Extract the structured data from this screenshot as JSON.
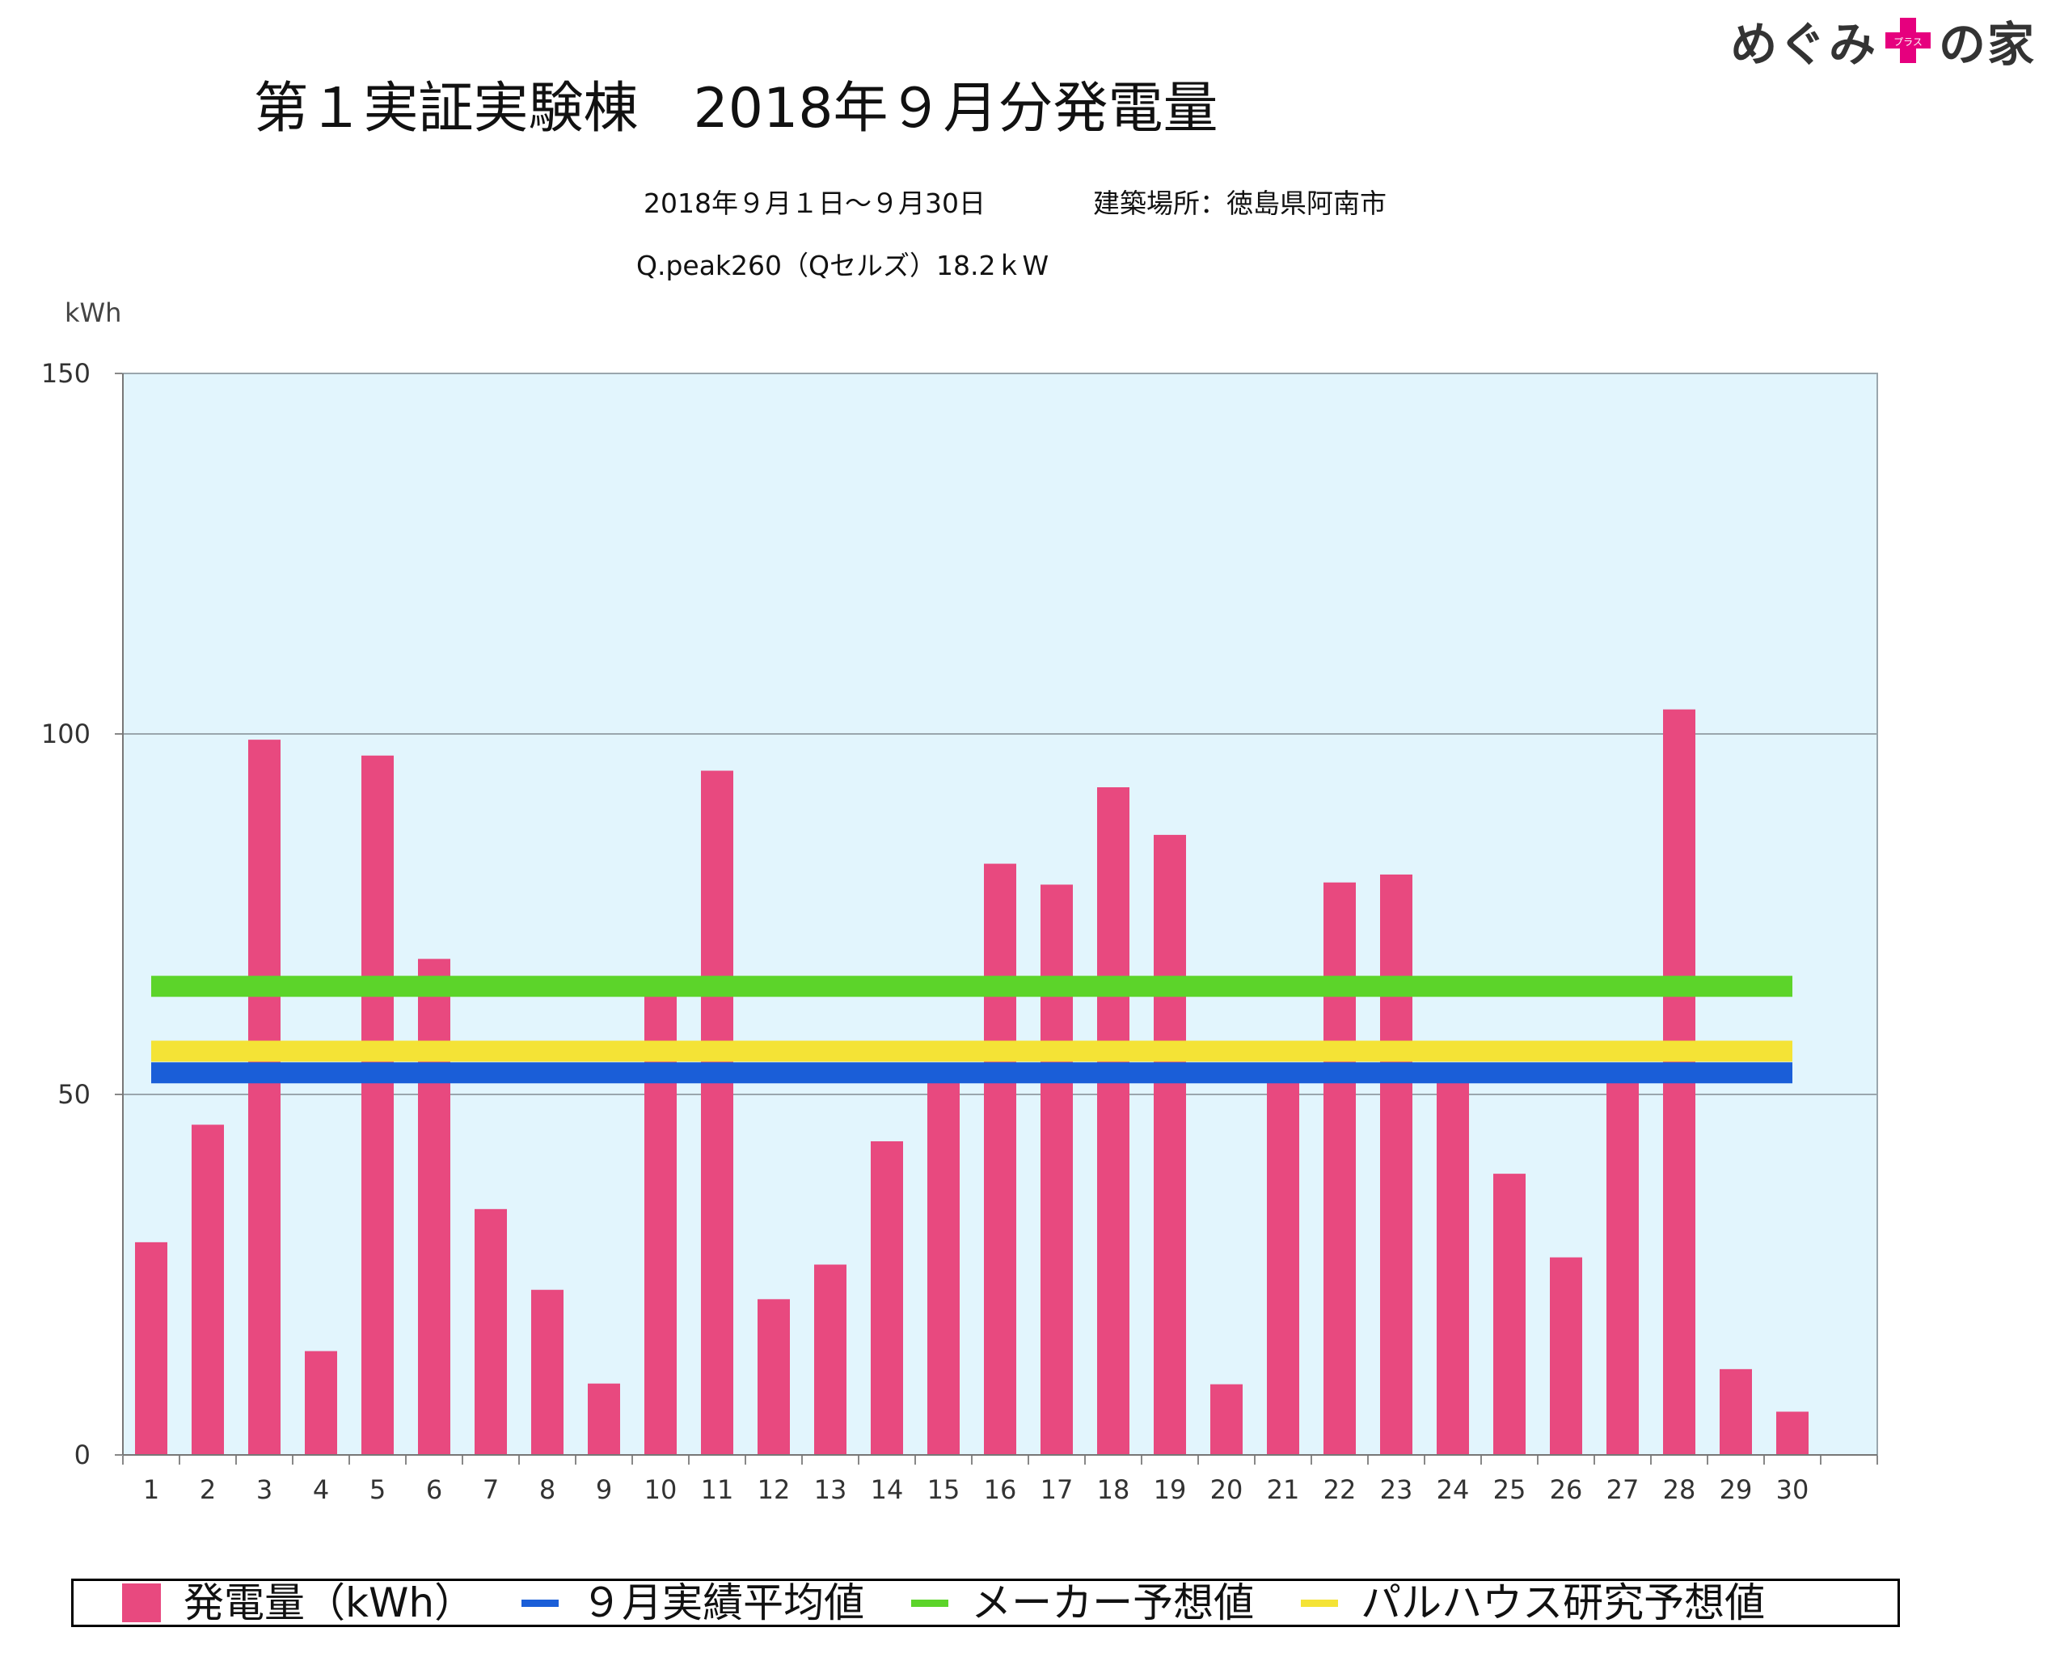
{
  "logo": {
    "left": "めぐみ",
    "right": "の家",
    "plus_text": "プラス",
    "plus_color": "#e6007e"
  },
  "title": "第１実証実験棟　2018年９月分発電量",
  "subtitle_period": "2018年９月１日～９月30日",
  "subtitle_location": "建築場所：徳島県阿南市",
  "subtitle_panel": "Q.peak260（Qセルズ）18.2ｋW",
  "chart_data": {
    "type": "bar",
    "ylabel": "kWh",
    "ylim": [
      0,
      150
    ],
    "yticks": [
      0,
      50,
      100,
      150
    ],
    "grid": true,
    "background": "#e2f5fd",
    "categories": [
      "1",
      "2",
      "3",
      "4",
      "5",
      "6",
      "7",
      "8",
      "9",
      "10",
      "11",
      "12",
      "13",
      "14",
      "15",
      "16",
      "17",
      "18",
      "19",
      "20",
      "21",
      "22",
      "23",
      "24",
      "25",
      "26",
      "27",
      "28",
      "29",
      "30"
    ],
    "series": [
      {
        "name": "発電量（kWh）",
        "color": "#e8497f",
        "values": [
          29.5,
          45.8,
          99.2,
          14.4,
          97.0,
          68.8,
          34.1,
          22.9,
          9.9,
          64.0,
          94.9,
          21.6,
          26.4,
          43.5,
          53.5,
          82.0,
          79.1,
          92.6,
          86.0,
          9.8,
          52.5,
          79.4,
          80.5,
          52.5,
          39.0,
          27.4,
          52.5,
          103.4,
          11.9,
          6.0
        ]
      }
    ],
    "reference_lines": [
      {
        "name": "メーカー予想値",
        "value": 65,
        "color": "#5cd42a"
      },
      {
        "name": "パルハウス研究予想値",
        "value": 56,
        "color": "#f4e336"
      },
      {
        "name": "９月実績平均値",
        "value": 53,
        "color": "#1a5ed8"
      }
    ],
    "legend_position": "bottom"
  }
}
